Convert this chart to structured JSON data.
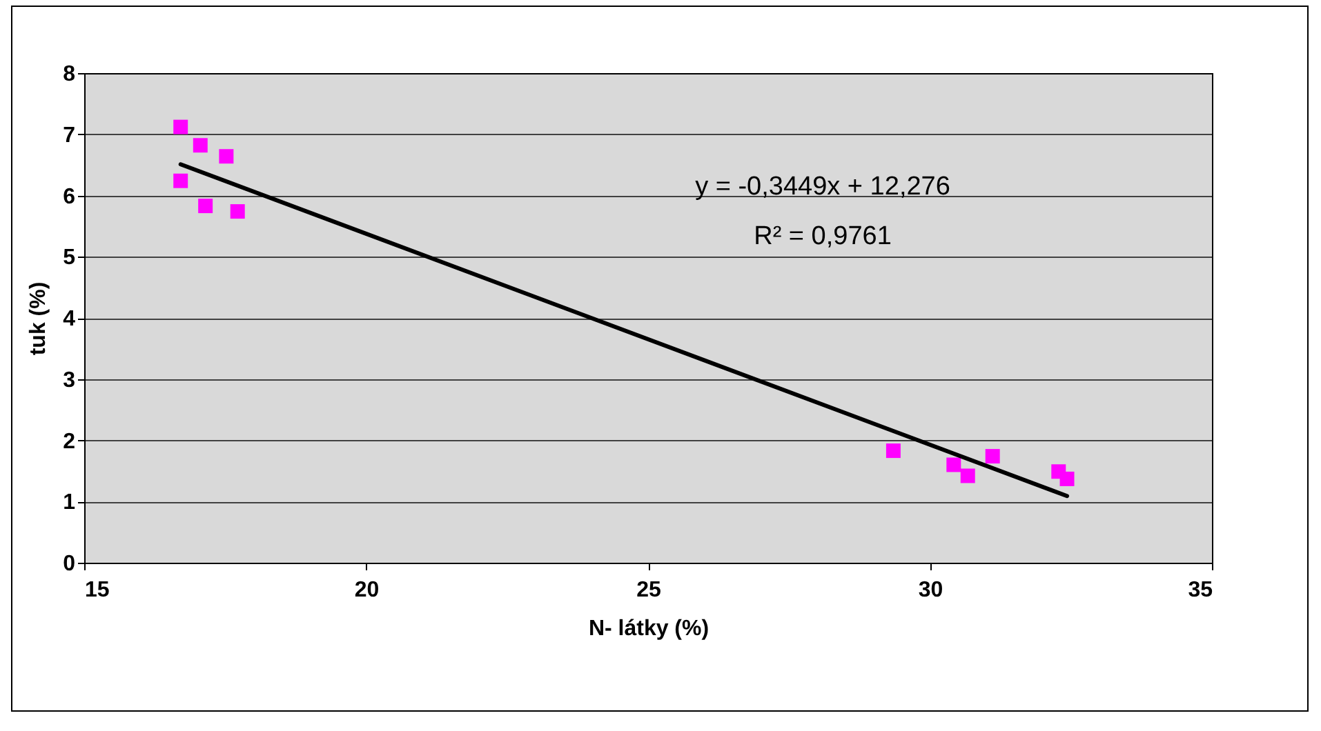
{
  "chart_data": {
    "type": "scatter",
    "xlabel": "N- látky (%)",
    "ylabel": "tuk (%)",
    "xlim": [
      15,
      35
    ],
    "xticks": [
      15,
      20,
      25,
      30,
      35
    ],
    "ylim": [
      0,
      8
    ],
    "yticks": [
      0,
      1,
      2,
      3,
      4,
      5,
      6,
      7,
      8
    ],
    "grid": "y",
    "annotations": [
      "y = -0,3449x + 12,276",
      "R² = 0,9761"
    ],
    "series": [
      {
        "marker": "square",
        "color": "#ff00ff",
        "x": [
          16.71,
          17.06,
          17.52,
          16.71,
          17.15,
          17.72,
          29.35,
          30.42,
          30.67,
          31.11,
          32.28,
          32.43
        ],
        "values": [
          7.12,
          6.82,
          6.64,
          6.24,
          5.83,
          5.74,
          1.83,
          1.6,
          1.42,
          1.74,
          1.49,
          1.37
        ]
      },
      {
        "type": "line",
        "color": "#000000",
        "x": [
          16.71,
          32.43
        ],
        "values": [
          6.51,
          1.09
        ]
      }
    ]
  }
}
